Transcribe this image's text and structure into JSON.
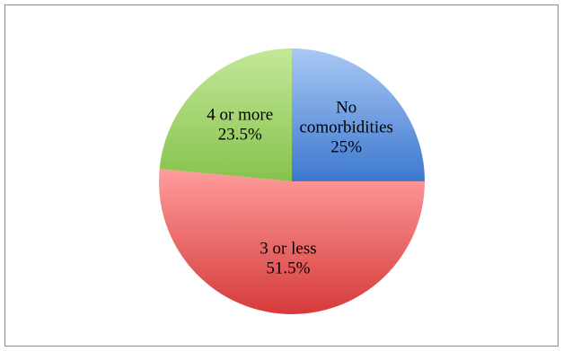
{
  "chart_data": {
    "type": "pie",
    "title": "",
    "start_angle_deg": 90,
    "direction": "clockwise",
    "slices": [
      {
        "label_lines": [
          "No",
          "comorbidities",
          "25%"
        ],
        "category": "No comorbidities",
        "percent_label": "25%",
        "value": 25,
        "color_light": "#a9c8f4",
        "color_dark": "#3d78cf"
      },
      {
        "label_lines": [
          "3 or less",
          "51.5%"
        ],
        "category": "3 or less",
        "percent_label": "51.5%",
        "value": 51.5,
        "color_light": "#ff9c9c",
        "color_dark": "#d63b3b"
      },
      {
        "label_lines": [
          "4 or more",
          "23.5%"
        ],
        "category": "4 or more",
        "percent_label": "23.5%",
        "value": 23.5,
        "color_light": "#c4e89a",
        "color_dark": "#86c24c"
      }
    ],
    "legend": "none"
  }
}
